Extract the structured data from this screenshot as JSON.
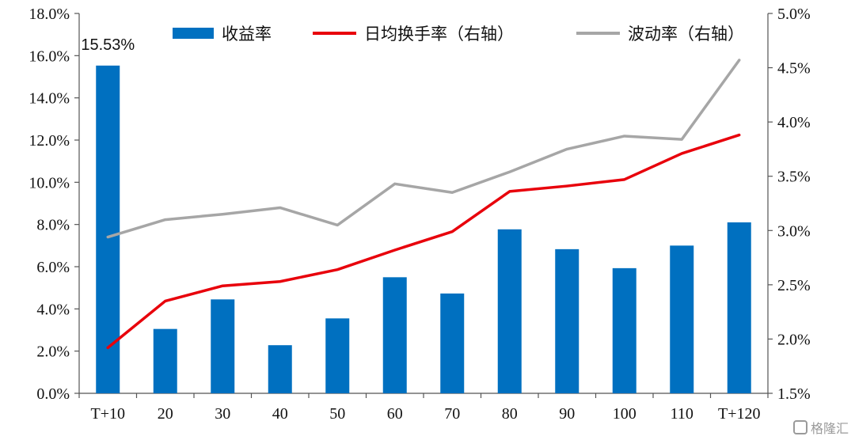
{
  "chart_data": {
    "type": "bar+line",
    "categories": [
      "T+10",
      "20",
      "30",
      "40",
      "50",
      "60",
      "70",
      "80",
      "90",
      "100",
      "110",
      "T+120"
    ],
    "bar_series": {
      "name": "收益率",
      "values": [
        15.53,
        3.05,
        4.45,
        2.28,
        3.55,
        5.5,
        4.73,
        7.77,
        6.83,
        5.93,
        7.0,
        8.1
      ],
      "unit": "%",
      "color": "#0070C0"
    },
    "line_series": [
      {
        "name": "日均换手率（右轴）",
        "values": [
          1.92,
          2.35,
          2.49,
          2.53,
          2.64,
          2.82,
          2.99,
          3.36,
          3.41,
          3.47,
          3.71,
          3.88
        ],
        "unit": "%",
        "color": "#E8000B"
      },
      {
        "name": "波动率（右轴）",
        "values": [
          2.94,
          3.1,
          3.15,
          3.21,
          3.05,
          3.43,
          3.35,
          3.54,
          3.75,
          3.87,
          3.84,
          4.57
        ],
        "unit": "%",
        "color": "#A6A6A6"
      }
    ],
    "y_left": {
      "ylim": [
        0,
        18
      ],
      "ticks": [
        "0.0%",
        "2.0%",
        "4.0%",
        "6.0%",
        "8.0%",
        "10.0%",
        "12.0%",
        "14.0%",
        "16.0%",
        "18.0%"
      ]
    },
    "y_right": {
      "ylim": [
        1.5,
        5.0
      ],
      "ticks": [
        "1.5%",
        "2.0%",
        "2.5%",
        "3.0%",
        "3.5%",
        "4.0%",
        "4.5%",
        "5.0%"
      ]
    },
    "annotations": [
      {
        "category": "T+10",
        "text": "15.53%"
      }
    ],
    "legend_position": "top",
    "grid": false
  },
  "watermark": {
    "text": "格隆汇"
  }
}
